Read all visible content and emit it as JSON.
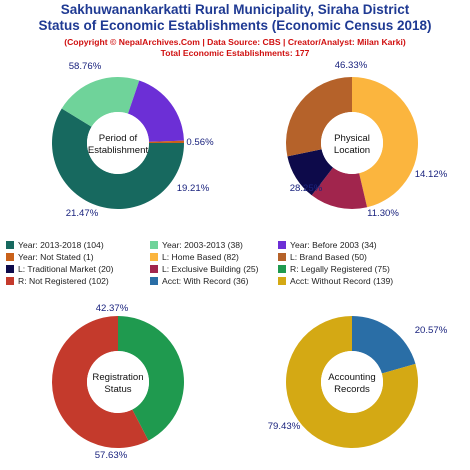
{
  "header": {
    "title_line1": "Sakhuwanankarkatti Rural Municipality, Siraha District",
    "title_line2": "Status of Economic Establishments (Economic Census 2018)",
    "subtitle_line1": "(Copyright © NepalArchives.Com | Data Source: CBS | Creator/Analyst: Milan Karki)",
    "subtitle_line2": "Total Economic Establishments: 177"
  },
  "chart_data": [
    {
      "type": "pie",
      "center_label": [
        "Period of",
        "Establishment"
      ],
      "slices": [
        {
          "label": "Year: 2013-2018",
          "value": 104,
          "pct_label": "58.76%",
          "color": "#17695f"
        },
        {
          "label": "Year: 2003-2013",
          "value": 38,
          "pct_label": "21.47%",
          "color": "#6fd39a"
        },
        {
          "label": "Year: Before 2003",
          "value": 34,
          "pct_label": "19.21%",
          "color": "#6c2fd6"
        },
        {
          "label": "Year: Not Stated",
          "value": 1,
          "pct_label": "0.56%",
          "color": "#c9611a"
        }
      ]
    },
    {
      "type": "pie",
      "center_label": [
        "Physical",
        "Location"
      ],
      "slices": [
        {
          "label": "L: Home Based",
          "value": 82,
          "pct_label": "46.33%",
          "color": "#fbb53e"
        },
        {
          "label": "L: Exclusive Building",
          "value": 25,
          "pct_label": "14.12%",
          "color": "#a1254d"
        },
        {
          "label": "L: Traditional Market",
          "value": 20,
          "pct_label": "11.30%",
          "color": "#0d0a4a"
        },
        {
          "label": "L: Brand Based",
          "value": 50,
          "pct_label": "28.25%",
          "color": "#b5622a"
        }
      ]
    },
    {
      "type": "pie",
      "center_label": [
        "Registration",
        "Status"
      ],
      "slices": [
        {
          "label": "R: Legally Registered",
          "value": 75,
          "pct_label": "42.37%",
          "color": "#1f9a4f"
        },
        {
          "label": "R: Not Registered",
          "value": 102,
          "pct_label": "57.63%",
          "color": "#c43a2c"
        }
      ]
    },
    {
      "type": "pie",
      "center_label": [
        "Accounting",
        "Records"
      ],
      "slices": [
        {
          "label": "Acct: With Record",
          "value": 36,
          "pct_label": "20.57%",
          "color": "#2a6ea6"
        },
        {
          "label": "Acct: Without Record",
          "value": 139,
          "pct_label": "79.43%",
          "color": "#d4a914"
        }
      ]
    }
  ],
  "legend": [
    {
      "label": "Year: 2013-2018 (104)",
      "color": "#17695f"
    },
    {
      "label": "Year: 2003-2013 (38)",
      "color": "#6fd39a"
    },
    {
      "label": "Year: Before 2003 (34)",
      "color": "#6c2fd6"
    },
    {
      "label": "Year: Not Stated (1)",
      "color": "#c9611a"
    },
    {
      "label": "L: Home Based (82)",
      "color": "#fbb53e"
    },
    {
      "label": "L: Brand Based (50)",
      "color": "#b5622a"
    },
    {
      "label": "L: Traditional Market (20)",
      "color": "#0d0a4a"
    },
    {
      "label": "L: Exclusive Building (25)",
      "color": "#a1254d"
    },
    {
      "label": "R: Legally Registered (75)",
      "color": "#1f9a4f"
    },
    {
      "label": "R: Not Registered (102)",
      "color": "#c43a2c"
    },
    {
      "label": "Acct: With Record (36)",
      "color": "#2a6ea6"
    },
    {
      "label": "Acct: Without Record (139)",
      "color": "#d4a914"
    }
  ]
}
